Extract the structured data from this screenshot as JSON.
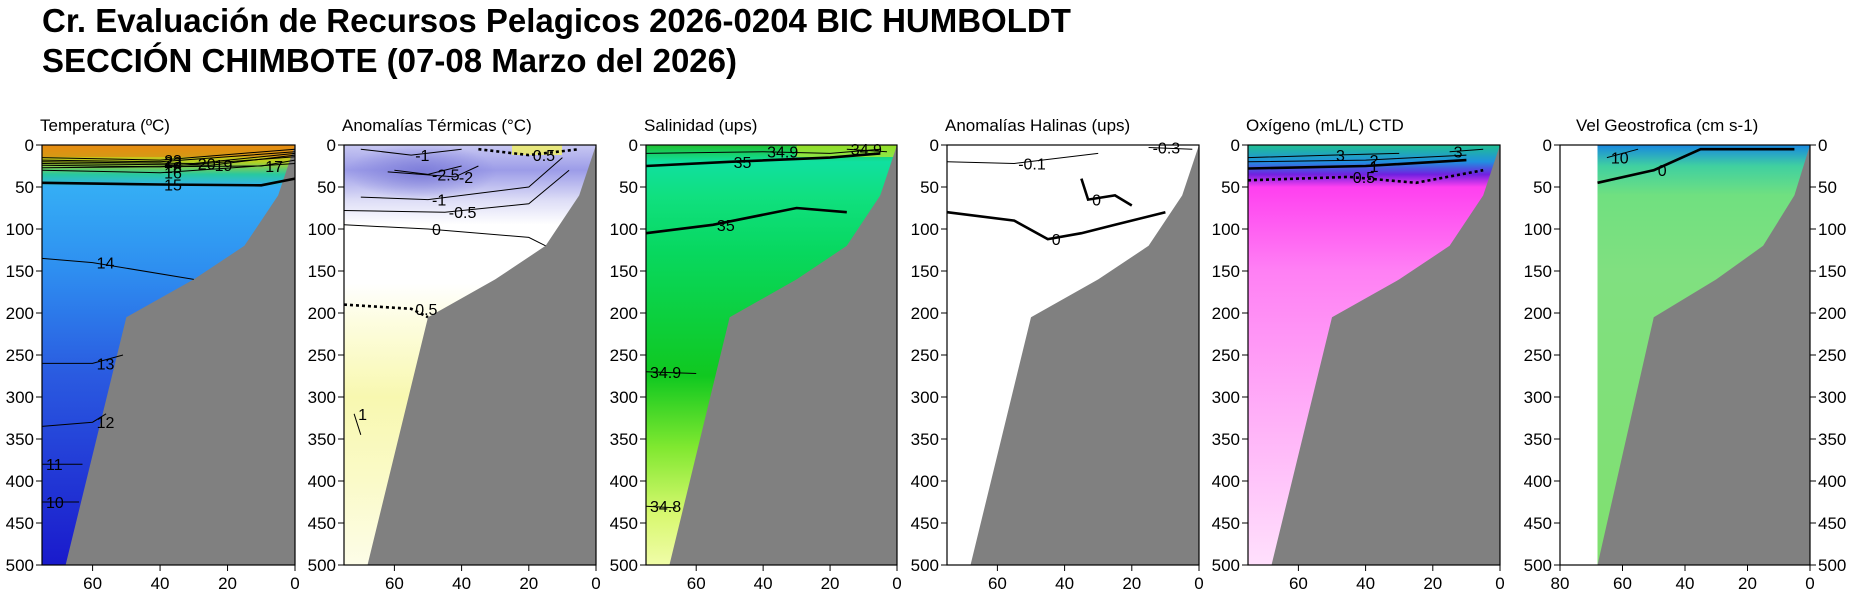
{
  "title": "Cr. Evaluación de Recursos Pelagicos 2026-0204 BIC HUMBOLDT",
  "subtitle": "SECCIÓN CHIMBOTE (07-08 Marzo del 2026)",
  "colors": {
    "land": "#808080",
    "temp_cold": "#1a1acc",
    "temp_mid": "#35aef5",
    "temp_warm": "#f0a010",
    "anom_cold": "#8888e0",
    "anom_warm": "#f5f5a0",
    "sal_main": "#10d070",
    "sal_deep": "#a0ee40",
    "oxy_low": "#ff60f0",
    "oxy_high": "#20c090",
    "vel_main": "#80e080"
  },
  "chart_data": [
    {
      "type": "heatmap",
      "title": "Temperatura (ºC)",
      "x_ticks": [
        60,
        40,
        20,
        0
      ],
      "y_ticks": [
        0,
        50,
        100,
        150,
        200,
        250,
        300,
        350,
        400,
        450,
        500
      ],
      "xlim": [
        75,
        0
      ],
      "ylim": [
        500,
        0
      ],
      "y_axis_side": "left",
      "seabed": [
        [
          75,
          500
        ],
        [
          68,
          500
        ],
        [
          50,
          205
        ],
        [
          30,
          160
        ],
        [
          15,
          120
        ],
        [
          5,
          60
        ],
        [
          0,
          0
        ]
      ],
      "contours": [
        {
          "value": 23,
          "label": "23",
          "depth_profile": [
            [
              75,
              15
            ],
            [
              40,
              18
            ],
            [
              0,
              5
            ]
          ]
        },
        {
          "value": 22,
          "label": "22",
          "depth_profile": [
            [
              75,
              18
            ],
            [
              40,
              20
            ],
            [
              0,
              8
            ]
          ]
        },
        {
          "value": 20,
          "label": "20",
          "depth_profile": [
            [
              75,
              20
            ],
            [
              30,
              22
            ],
            [
              0,
              10
            ]
          ]
        },
        {
          "value": 19,
          "label": "19",
          "depth_profile": [
            [
              75,
              22
            ],
            [
              25,
              24
            ],
            [
              0,
              12
            ]
          ]
        },
        {
          "value": 18,
          "label": "18",
          "depth_profile": [
            [
              75,
              24
            ],
            [
              40,
              26
            ],
            [
              0,
              14
            ]
          ]
        },
        {
          "value": 17,
          "label": "17",
          "depth_profile": [
            [
              75,
              27
            ],
            [
              10,
              25
            ],
            [
              0,
              18
            ]
          ]
        },
        {
          "value": 16,
          "label": "16",
          "depth_profile": [
            [
              75,
              30
            ],
            [
              40,
              33
            ],
            [
              0,
              22
            ]
          ]
        },
        {
          "value": 15,
          "label": "15",
          "depth_profile": [
            [
              75,
              45
            ],
            [
              40,
              47
            ],
            [
              10,
              48
            ],
            [
              0,
              40
            ]
          ]
        },
        {
          "value": 14,
          "label": "14",
          "depth_profile": [
            [
              75,
              135
            ],
            [
              60,
              140
            ],
            [
              30,
              160
            ]
          ]
        },
        {
          "value": 13,
          "label": "13",
          "depth_profile": [
            [
              75,
              260
            ],
            [
              60,
              260
            ],
            [
              51,
              250
            ]
          ]
        },
        {
          "value": 12,
          "label": "12",
          "depth_profile": [
            [
              75,
              335
            ],
            [
              60,
              330
            ],
            [
              56,
              320
            ]
          ]
        },
        {
          "value": 11,
          "label": "11",
          "depth_profile": [
            [
              75,
              380
            ],
            [
              63,
              380
            ]
          ]
        },
        {
          "value": 10,
          "label": "10",
          "depth_profile": [
            [
              75,
              425
            ],
            [
              64,
              425
            ]
          ]
        }
      ]
    },
    {
      "type": "heatmap",
      "title": "Anomalías Térmicas (°C)",
      "x_ticks": [
        60,
        40,
        20,
        0
      ],
      "y_ticks": [
        0,
        50,
        100,
        150,
        200,
        250,
        300,
        350,
        400,
        450,
        500
      ],
      "xlim": [
        75,
        0
      ],
      "ylim": [
        500,
        0
      ],
      "y_axis_side": "left",
      "seabed": [
        [
          75,
          500
        ],
        [
          68,
          500
        ],
        [
          50,
          205
        ],
        [
          30,
          160
        ],
        [
          15,
          120
        ],
        [
          5,
          60
        ],
        [
          0,
          0
        ]
      ],
      "contours": [
        {
          "value": -1,
          "label": "-1",
          "depth_profile": [
            [
              70,
              5
            ],
            [
              55,
              12
            ],
            [
              40,
              5
            ]
          ]
        },
        {
          "value": 0.5,
          "label": "0.5",
          "depth_profile": [
            [
              35,
              5
            ],
            [
              20,
              12
            ],
            [
              5,
              5
            ]
          ]
        },
        {
          "value": -2.5,
          "label": "-2.5",
          "depth_profile": [
            [
              60,
              30
            ],
            [
              50,
              35
            ],
            [
              40,
              25
            ]
          ]
        },
        {
          "value": -2,
          "label": "-2",
          "depth_profile": [
            [
              62,
              32
            ],
            [
              42,
              38
            ],
            [
              35,
              25
            ]
          ]
        },
        {
          "value": -1,
          "label": "-1",
          "depth_profile": [
            [
              70,
              62
            ],
            [
              50,
              65
            ],
            [
              20,
              50
            ],
            [
              10,
              15
            ]
          ]
        },
        {
          "value": -0.5,
          "label": "-0.5",
          "depth_profile": [
            [
              75,
              78
            ],
            [
              45,
              80
            ],
            [
              20,
              70
            ],
            [
              8,
              30
            ]
          ]
        },
        {
          "value": 0,
          "label": "0",
          "depth_profile": [
            [
              75,
              95
            ],
            [
              50,
              100
            ],
            [
              20,
              110
            ],
            [
              15,
              120
            ]
          ]
        },
        {
          "value": 0.5,
          "label": "0.5",
          "depth_profile": [
            [
              75,
              190
            ],
            [
              55,
              195
            ],
            [
              50,
              205
            ]
          ]
        },
        {
          "value": 1,
          "label": "1",
          "depth_profile": [
            [
              72,
              320
            ],
            [
              70,
              345
            ]
          ]
        }
      ]
    },
    {
      "type": "heatmap",
      "title": "Salinidad (ups)",
      "x_ticks": [
        60,
        40,
        20,
        0
      ],
      "y_ticks": [
        0,
        50,
        100,
        150,
        200,
        250,
        300,
        350,
        400,
        450,
        500
      ],
      "xlim": [
        75,
        0
      ],
      "ylim": [
        500,
        0
      ],
      "y_axis_side": "left",
      "seabed": [
        [
          75,
          500
        ],
        [
          68,
          500
        ],
        [
          50,
          205
        ],
        [
          30,
          160
        ],
        [
          15,
          120
        ],
        [
          5,
          60
        ],
        [
          0,
          0
        ]
      ],
      "contours": [
        {
          "value": 34.9,
          "label": "34.9",
          "depth_profile": [
            [
              75,
              10
            ],
            [
              40,
              8
            ],
            [
              20,
              10
            ],
            [
              5,
              5
            ]
          ]
        },
        {
          "value": 34.9,
          "label": "34.9",
          "depth_profile": [
            [
              15,
              5
            ],
            [
              3,
              8
            ]
          ]
        },
        {
          "value": 35,
          "label": "35",
          "depth_profile": [
            [
              75,
              25
            ],
            [
              50,
              20
            ],
            [
              20,
              15
            ],
            [
              5,
              10
            ]
          ]
        },
        {
          "value": 35,
          "label": "35",
          "depth_profile": [
            [
              75,
              105
            ],
            [
              55,
              95
            ],
            [
              30,
              75
            ],
            [
              15,
              80
            ]
          ]
        },
        {
          "value": 34.9,
          "label": "34.9",
          "depth_profile": [
            [
              75,
              270
            ],
            [
              60,
              272
            ]
          ]
        },
        {
          "value": 34.8,
          "label": "34.8",
          "depth_profile": [
            [
              75,
              430
            ],
            [
              66,
              432
            ]
          ]
        }
      ]
    },
    {
      "type": "heatmap",
      "title": "Anomalías Halinas (ups)",
      "x_ticks": [
        60,
        40,
        20,
        0
      ],
      "y_ticks": [
        0,
        50,
        100,
        150,
        200,
        250,
        300,
        350,
        400,
        450,
        500
      ],
      "xlim": [
        75,
        0
      ],
      "ylim": [
        500,
        0
      ],
      "y_axis_side": "left",
      "seabed": [
        [
          75,
          500
        ],
        [
          68,
          500
        ],
        [
          50,
          205
        ],
        [
          30,
          160
        ],
        [
          15,
          120
        ],
        [
          5,
          60
        ],
        [
          0,
          0
        ]
      ],
      "contours": [
        {
          "value": -0.1,
          "label": "-0.1",
          "depth_profile": [
            [
              75,
              20
            ],
            [
              55,
              22
            ],
            [
              30,
              10
            ]
          ]
        },
        {
          "value": -0.3,
          "label": "-0.3",
          "depth_profile": [
            [
              15,
              3
            ],
            [
              2,
              5
            ]
          ]
        },
        {
          "value": 0,
          "label": "0",
          "depth_profile": [
            [
              75,
              80
            ],
            [
              55,
              90
            ],
            [
              45,
              112
            ],
            [
              35,
              105
            ],
            [
              25,
              95
            ],
            [
              10,
              80
            ]
          ]
        },
        {
          "value": 0,
          "label": "0",
          "depth_profile": [
            [
              35,
              40
            ],
            [
              33,
              65
            ],
            [
              25,
              60
            ],
            [
              20,
              72
            ]
          ]
        }
      ]
    },
    {
      "type": "heatmap",
      "title": "Oxígeno (mL/L) CTD",
      "x_ticks": [
        60,
        40,
        20,
        0
      ],
      "y_ticks": [
        0,
        50,
        100,
        150,
        200,
        250,
        300,
        350,
        400,
        450,
        500
      ],
      "xlim": [
        75,
        0
      ],
      "ylim": [
        500,
        0
      ],
      "y_axis_side": "left",
      "seabed": [
        [
          75,
          500
        ],
        [
          68,
          500
        ],
        [
          50,
          205
        ],
        [
          30,
          160
        ],
        [
          15,
          120
        ],
        [
          5,
          60
        ],
        [
          0,
          0
        ]
      ],
      "contours": [
        {
          "value": 3,
          "label": "3",
          "depth_profile": [
            [
              75,
              15
            ],
            [
              50,
              12
            ],
            [
              30,
              10
            ]
          ]
        },
        {
          "value": 3,
          "label": "3",
          "depth_profile": [
            [
              15,
              8
            ],
            [
              5,
              5
            ]
          ]
        },
        {
          "value": 2,
          "label": "2",
          "depth_profile": [
            [
              75,
              20
            ],
            [
              40,
              18
            ],
            [
              10,
              12
            ]
          ]
        },
        {
          "value": 1,
          "label": "1",
          "depth_profile": [
            [
              75,
              28
            ],
            [
              40,
              25
            ],
            [
              10,
              18
            ]
          ]
        },
        {
          "value": 0.5,
          "label": "0.5",
          "depth_profile": [
            [
              75,
              42
            ],
            [
              45,
              38
            ],
            [
              25,
              45
            ],
            [
              5,
              30
            ]
          ]
        }
      ]
    },
    {
      "type": "heatmap",
      "title": "Vel Geostrofica (cm s-1)",
      "x_ticks": [
        80,
        60,
        40,
        20,
        0
      ],
      "y_ticks": [
        0,
        50,
        100,
        150,
        200,
        250,
        300,
        350,
        400,
        450,
        500
      ],
      "xlim": [
        80,
        0
      ],
      "ylim": [
        500,
        0
      ],
      "y_axis_side": "both",
      "seabed": [
        [
          80,
          500
        ],
        [
          68,
          500
        ],
        [
          50,
          205
        ],
        [
          30,
          160
        ],
        [
          15,
          120
        ],
        [
          5,
          60
        ],
        [
          0,
          0
        ]
      ],
      "contours": [
        {
          "value": 10,
          "label": "10",
          "depth_profile": [
            [
              65,
              15
            ],
            [
              55,
              5
            ]
          ]
        },
        {
          "value": 0,
          "label": "0",
          "depth_profile": [
            [
              68,
              45
            ],
            [
              50,
              30
            ],
            [
              35,
              5
            ],
            [
              5,
              5
            ]
          ]
        }
      ]
    }
  ]
}
